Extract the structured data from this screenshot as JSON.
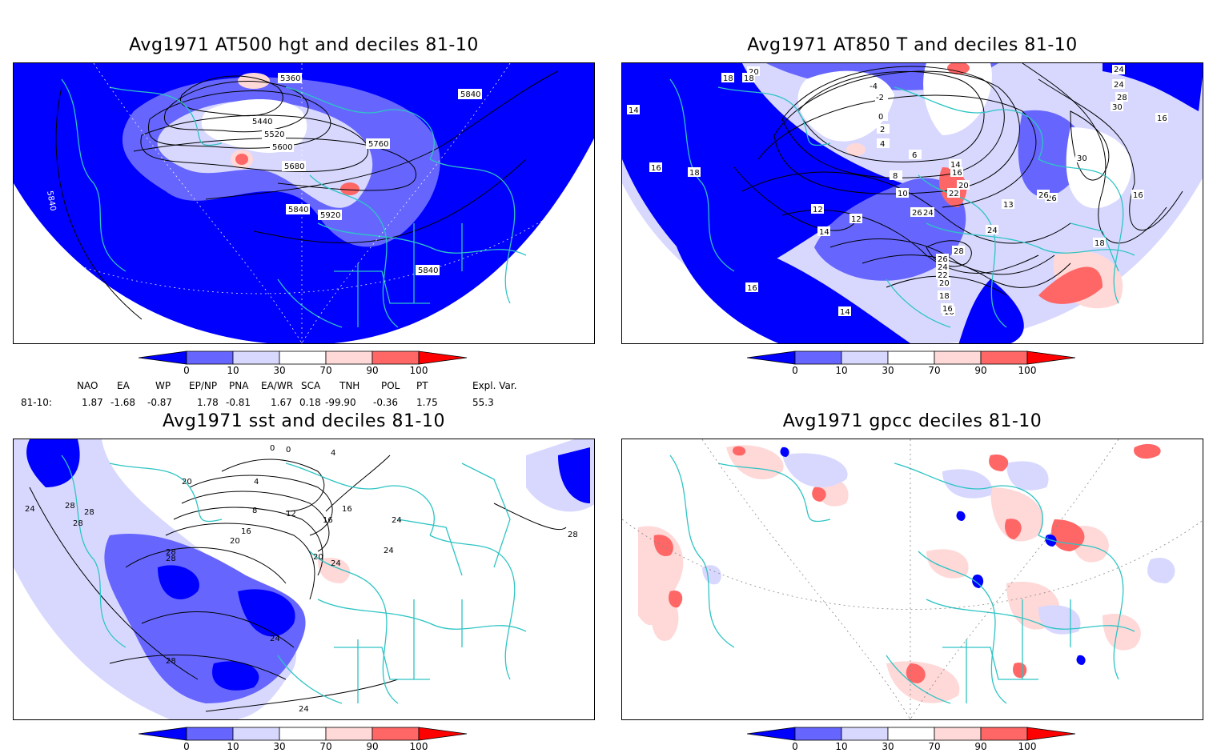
{
  "panels": {
    "p1": {
      "title": "Avg1971 AT500 hgt and deciles 81-10",
      "labels": [
        "5360",
        "5440",
        "5520",
        "5600",
        "5680",
        "5760",
        "5840",
        "5840",
        "5840",
        "5840",
        "5920"
      ]
    },
    "p2": {
      "title": "Avg1971 AT850 T and deciles 81-10",
      "labels": [
        "20",
        "18",
        "18",
        "14",
        "16",
        "18",
        "10",
        "12",
        "12",
        "14",
        "16",
        "14",
        "16",
        "-4",
        "-2",
        "0",
        "2",
        "4",
        "6",
        "8",
        "14",
        "16",
        "20",
        "22",
        "24",
        "26",
        "26",
        "13",
        "24",
        "28",
        "26",
        "24",
        "22",
        "20",
        "18",
        "16",
        "30",
        "26",
        "16",
        "18",
        "24",
        "24",
        "28",
        "30",
        "16"
      ]
    },
    "p3": {
      "title": "Avg1971 sst and deciles 81-10",
      "labels": [
        "24",
        "28",
        "28",
        "28",
        "28",
        "20",
        "28",
        "28",
        "24",
        "8",
        "12",
        "16",
        "20",
        "4",
        "0",
        "0",
        "4",
        "16",
        "16",
        "20",
        "24",
        "24",
        "24",
        "28",
        "24"
      ]
    },
    "p4": {
      "title": "Avg1971 gpcc deciles 81-10",
      "labels": []
    }
  },
  "colorbar": {
    "ticks": [
      "0",
      "10",
      "30",
      "70",
      "90",
      "100"
    ],
    "colors": [
      "#0000ff",
      "#6666ff",
      "#d8d8ff",
      "#ffffff",
      "#ffd8d8",
      "#ff6666",
      "#ff0000"
    ]
  },
  "indices": {
    "headers": [
      "NAO",
      "EA",
      "WP",
      "EP/NP",
      "PNA",
      "EA/WR",
      "SCA",
      "TNH",
      "POL",
      "PT",
      "Expl. Var."
    ],
    "row_label": "81-10:",
    "values": [
      "1.87",
      "-1.68",
      "-0.87",
      "1.78",
      "-0.81",
      "1.67",
      "0.18",
      "-99.90",
      "-0.36",
      "1.75",
      "55.3"
    ]
  },
  "colors": {
    "coast": "#2ec4c4",
    "land_blue": "#0000ff",
    "mid_blue": "#6666ff",
    "light_blue": "#d8d8ff",
    "light_red": "#ffd8d8",
    "mid_red": "#ff6666"
  }
}
